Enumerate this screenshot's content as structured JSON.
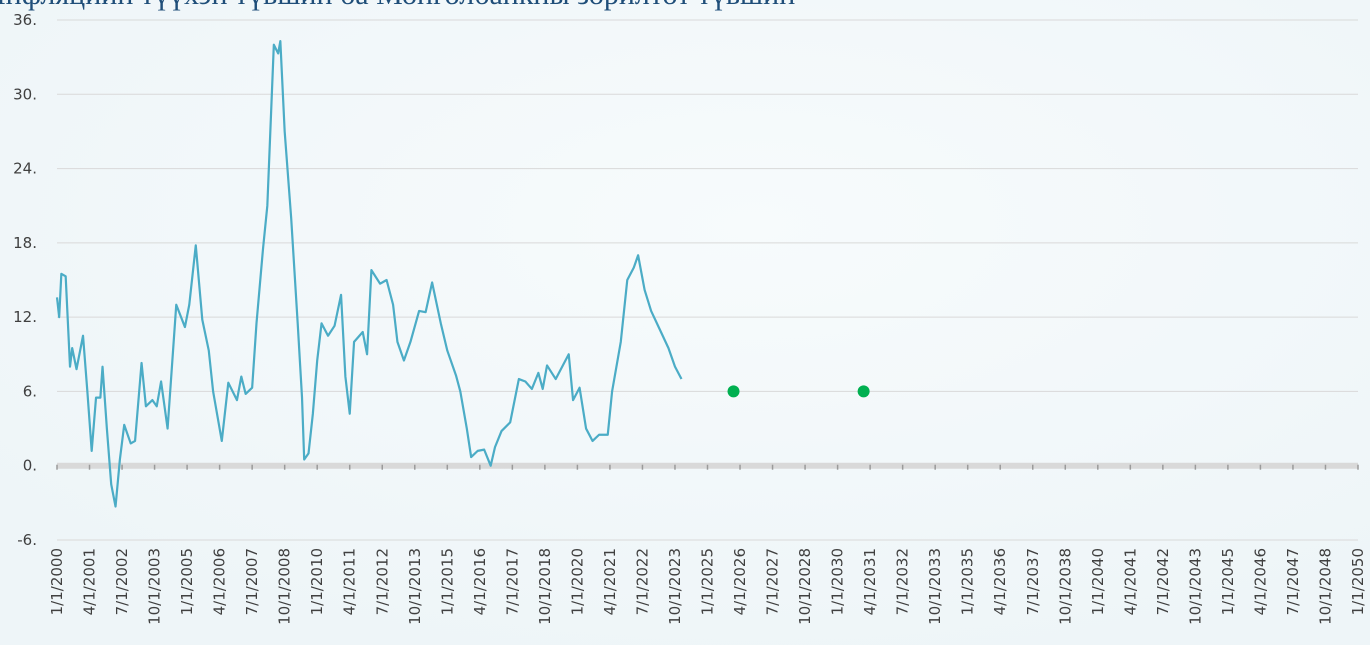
{
  "chart_data": {
    "type": "line",
    "title": "Инфляцийн түүхэн түвшин ба Монголбанкны зорилтот түвшин",
    "xlim": [
      "1/1/2000",
      "1/1/2050"
    ],
    "xticks": [
      "1/1/2000",
      "4/1/2001",
      "7/1/2002",
      "10/1/2003",
      "1/1/2005",
      "4/1/2006",
      "7/1/2007",
      "10/1/2008",
      "1/1/2010",
      "4/1/2011",
      "7/1/2012",
      "10/1/2013",
      "1/1/2015",
      "4/1/2016",
      "7/1/2017",
      "10/1/2018",
      "1/1/2020",
      "4/1/2021",
      "7/1/2022",
      "10/1/2023",
      "1/1/2025",
      "4/1/2026",
      "7/1/2027",
      "10/1/2028",
      "1/1/2030",
      "4/1/2031",
      "7/1/2032",
      "10/1/2033",
      "1/1/2035",
      "4/1/2036",
      "7/1/2037",
      "10/1/2038",
      "1/1/2040",
      "4/1/2041",
      "7/1/2042",
      "10/1/2043",
      "1/1/2045",
      "4/1/2046",
      "7/1/2047",
      "10/1/2048",
      "1/1/2050"
    ],
    "ylim": [
      -6,
      36
    ],
    "yticks": [
      {
        "value": -6,
        "label": "-6."
      },
      {
        "value": 0,
        "label": "0."
      },
      {
        "value": 6,
        "label": "6."
      },
      {
        "value": 12,
        "label": "12."
      },
      {
        "value": 18,
        "label": "18."
      },
      {
        "value": 24,
        "label": "24."
      },
      {
        "value": 30,
        "label": "30."
      },
      {
        "value": 36,
        "label": "36."
      }
    ],
    "grid": true,
    "series": [
      {
        "kind": "line",
        "color": "#4bacc6",
        "x": [
          "1/1/2000",
          "2/1/2000",
          "3/1/2000",
          "5/1/2000",
          "7/1/2000",
          "8/1/2000",
          "10/1/2000",
          "1/1/2001",
          "3/1/2001",
          "5/1/2001",
          "7/1/2001",
          "9/1/2001",
          "10/1/2001",
          "12/1/2001",
          "2/1/2002",
          "4/1/2002",
          "6/1/2002",
          "8/1/2002",
          "11/1/2002",
          "1/1/2003",
          "4/1/2003",
          "6/1/2003",
          "9/1/2003",
          "11/1/2003",
          "1/1/2004",
          "4/1/2004",
          "8/1/2004",
          "12/1/2004",
          "2/1/2005",
          "5/1/2005",
          "8/1/2005",
          "11/1/2005",
          "1/1/2006",
          "5/1/2006",
          "8/1/2006",
          "12/1/2006",
          "2/1/2007",
          "4/1/2007",
          "7/1/2007",
          "9/1/2007",
          "12/1/2007",
          "2/1/2008",
          "5/1/2008",
          "7/1/2008",
          "8/1/2008",
          "10/1/2008",
          "1/1/2009",
          "4/1/2009",
          "6/1/2009",
          "7/1/2009",
          "9/1/2009",
          "11/1/2009",
          "1/1/2010",
          "3/1/2010",
          "6/1/2010",
          "9/1/2010",
          "12/1/2010",
          "2/1/2011",
          "4/1/2011",
          "6/1/2011",
          "10/1/2011",
          "12/1/2011",
          "2/1/2012",
          "6/1/2012",
          "9/1/2012",
          "12/1/2012",
          "2/1/2013",
          "5/1/2013",
          "8/1/2013",
          "12/1/2013",
          "3/1/2014",
          "6/1/2014",
          "10/1/2014",
          "1/1/2015",
          "5/1/2015",
          "7/1/2015",
          "10/1/2015",
          "12/1/2015",
          "3/1/2016",
          "6/1/2016",
          "9/1/2016",
          "11/1/2016",
          "2/1/2017",
          "6/1/2017",
          "10/1/2017",
          "1/1/2018",
          "4/1/2018",
          "7/1/2018",
          "9/1/2018",
          "11/1/2018",
          "3/1/2019",
          "6/1/2019",
          "9/1/2019",
          "11/1/2019",
          "2/1/2020",
          "5/1/2020",
          "8/1/2020",
          "11/1/2020",
          "3/1/2021",
          "5/1/2021",
          "9/1/2021",
          "12/1/2021",
          "3/1/2022",
          "5/1/2022",
          "8/1/2022",
          "11/1/2022",
          "3/1/2023",
          "7/1/2023",
          "10/1/2023",
          "1/1/2024"
        ],
        "values": [
          13.6,
          12,
          15.5,
          15.3,
          8,
          9.5,
          7.8,
          10.5,
          6,
          1.2,
          5.5,
          5.5,
          8,
          3,
          -1.5,
          -3.3,
          0.5,
          3.3,
          1.8,
          2,
          8.3,
          4.8,
          5.3,
          4.8,
          6.8,
          3,
          13,
          11.2,
          13,
          17.8,
          11.8,
          9.3,
          6,
          2,
          6.7,
          5.3,
          7.2,
          5.8,
          6.3,
          11.5,
          17.5,
          21,
          34,
          33.3,
          34.3,
          27,
          20,
          11.5,
          5.5,
          0.5,
          1,
          4.2,
          8.5,
          11.5,
          10.5,
          11.3,
          13.8,
          7.2,
          4.2,
          10,
          10.8,
          9,
          15.8,
          14.7,
          15,
          13,
          10,
          8.5,
          10,
          12.5,
          12.4,
          14.8,
          11.5,
          9.3,
          7.3,
          6,
          3,
          0.7,
          1.2,
          1.3,
          0,
          1.5,
          2.8,
          3.5,
          7,
          6.8,
          6.2,
          7.5,
          6.2,
          8.1,
          7,
          8,
          9,
          5.3,
          6.3,
          3,
          2,
          2.5,
          2.5,
          6,
          10,
          15,
          16,
          17,
          14.2,
          12.5,
          11,
          9.5,
          8,
          7
        ]
      },
      {
        "kind": "scatter",
        "color": "#00b050",
        "x": [
          "1/1/2026",
          "1/1/2031"
        ],
        "values": [
          6,
          6
        ]
      }
    ]
  }
}
